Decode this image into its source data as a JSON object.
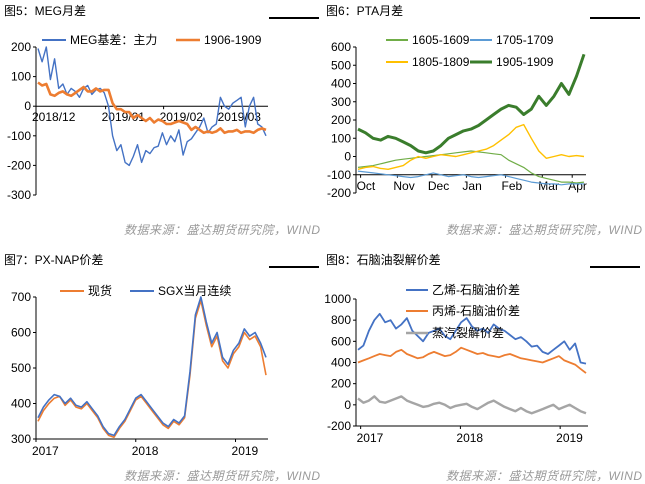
{
  "source_text": "数据来源：盛达期货研究院，WIND",
  "chart_data": [
    {
      "id": "fig5",
      "type": "line",
      "title": "图5：MEG月差",
      "ylim": [
        -300,
        200
      ],
      "yticks": [
        -300,
        -200,
        -100,
        0,
        100,
        200
      ],
      "xlabels": [
        "2018/12",
        "2019/01",
        "2019/02",
        "2019/03"
      ],
      "legend": "top-left, inside",
      "series": [
        {
          "name": "MEG基差：主力",
          "color": "#4472c4",
          "values": [
            195,
            150,
            200,
            90,
            160,
            60,
            75,
            40,
            60,
            50,
            30,
            60,
            70,
            40,
            55,
            60,
            45,
            0,
            -100,
            -150,
            -130,
            -190,
            -200,
            -170,
            -130,
            -190,
            -150,
            -160,
            -140,
            -135,
            -90,
            -130,
            -100,
            -120,
            -80,
            -165,
            -120,
            -110,
            -90,
            -70,
            -40,
            -90,
            -70,
            -60,
            30,
            0,
            -10,
            10,
            20,
            30,
            -70,
            0,
            30,
            -60,
            -70,
            -100
          ]
        },
        {
          "name": "1906-1909",
          "color": "#ed7d31",
          "values": [
            80,
            70,
            75,
            40,
            35,
            45,
            50,
            40,
            35,
            45,
            55,
            65,
            50,
            50,
            60,
            50,
            55,
            55,
            10,
            -10,
            -10,
            -20,
            -20,
            -40,
            -30,
            -40,
            -50,
            -40,
            -55,
            -45,
            -50,
            -60,
            -60,
            -55,
            -50,
            -55,
            -60,
            -80,
            -70,
            -80,
            -90,
            -85,
            -90,
            -85,
            -75,
            -90,
            -85,
            -85,
            -80,
            -90,
            -85,
            -85,
            -90,
            -80,
            -75,
            -80
          ]
        }
      ]
    },
    {
      "id": "fig6",
      "type": "line",
      "title": "图6：PTA月差",
      "ylim": [
        -200,
        600
      ],
      "yticks": [
        -200,
        -100,
        0,
        100,
        200,
        300,
        400,
        500,
        600
      ],
      "xlabels": [
        "Oct",
        "Nov",
        "Dec",
        "Jan",
        "Feb",
        "Mar",
        "Apr"
      ],
      "legend": "top, inside, 2 columns",
      "series": [
        {
          "name": "1605-1609",
          "color": "#70ad47",
          "values": [
            -60,
            -55,
            -50,
            -40,
            -30,
            -20,
            -15,
            -10,
            -5,
            0,
            5,
            10,
            15,
            20,
            25,
            30,
            25,
            20,
            15,
            10,
            -20,
            -40,
            -60,
            -90,
            -110,
            -120,
            -130,
            -140,
            -140,
            -145,
            -140
          ]
        },
        {
          "name": "1705-1709",
          "color": "#5b9bd5",
          "values": [
            -80,
            -85,
            -90,
            -95,
            -100,
            -105,
            -110,
            -115,
            -110,
            -100,
            -90,
            -100,
            -110,
            -105,
            -100,
            -110,
            -115,
            -110,
            -105,
            -100,
            -110,
            -120,
            -130,
            -140,
            -145,
            -150,
            -150,
            -155,
            -150,
            -150,
            -150
          ]
        },
        {
          "name": "1805-1809",
          "color": "#ffc000",
          "values": [
            -70,
            -60,
            -55,
            -65,
            -70,
            -60,
            -50,
            -20,
            0,
            -10,
            0,
            10,
            5,
            0,
            10,
            20,
            30,
            40,
            60,
            90,
            120,
            160,
            175,
            100,
            30,
            -10,
            0,
            10,
            0,
            5,
            0
          ]
        },
        {
          "name": "1905-1909",
          "color": "#3a7d2c",
          "values": [
            150,
            130,
            100,
            90,
            110,
            100,
            80,
            60,
            30,
            20,
            30,
            60,
            100,
            120,
            140,
            150,
            170,
            200,
            230,
            260,
            280,
            270,
            230,
            260,
            330,
            280,
            330,
            400,
            340,
            440,
            560
          ]
        }
      ]
    },
    {
      "id": "fig7",
      "type": "line",
      "title": "图7：PX-NAP价差",
      "ylim": [
        300,
        700
      ],
      "yticks": [
        300,
        400,
        500,
        600,
        700
      ],
      "xlabels": [
        "2017",
        "2018",
        "2019"
      ],
      "legend": "top, inside",
      "series": [
        {
          "name": "现货",
          "color": "#ed7d31",
          "values": [
            350,
            380,
            400,
            415,
            420,
            395,
            410,
            390,
            385,
            400,
            380,
            360,
            330,
            310,
            305,
            330,
            350,
            380,
            410,
            420,
            400,
            380,
            360,
            340,
            330,
            350,
            340,
            360,
            480,
            640,
            690,
            620,
            560,
            590,
            520,
            500,
            540,
            560,
            600,
            580,
            590,
            560,
            480
          ]
        },
        {
          "name": "SGX当月连续",
          "color": "#4472c4",
          "values": [
            360,
            390,
            410,
            425,
            420,
            400,
            415,
            395,
            390,
            405,
            385,
            365,
            335,
            315,
            310,
            335,
            355,
            385,
            415,
            425,
            405,
            385,
            365,
            345,
            335,
            355,
            345,
            365,
            490,
            650,
            700,
            630,
            570,
            600,
            530,
            510,
            550,
            570,
            610,
            590,
            600,
            570,
            530
          ]
        }
      ]
    },
    {
      "id": "fig8",
      "type": "line",
      "title": "图8：石脑油裂解价差",
      "ylim": [
        -200,
        1000
      ],
      "yticks": [
        -200,
        0,
        200,
        400,
        600,
        800,
        1000
      ],
      "xlabels": [
        "2017",
        "2018",
        "2019"
      ],
      "legend": "top-right, inside",
      "series": [
        {
          "name": "乙烯-石脑油价差",
          "color": "#4472c4",
          "values": [
            520,
            560,
            700,
            800,
            860,
            780,
            800,
            720,
            760,
            820,
            700,
            650,
            600,
            680,
            700,
            720,
            650,
            620,
            700,
            780,
            820,
            740,
            700,
            720,
            680,
            760,
            720,
            700,
            660,
            620,
            640,
            600,
            550,
            560,
            500,
            480,
            520,
            560,
            600,
            520,
            580,
            400,
            390
          ]
        },
        {
          "name": "丙烯-石脑油价差",
          "color": "#ed7d31",
          "values": [
            400,
            420,
            440,
            460,
            480,
            470,
            460,
            500,
            520,
            480,
            460,
            440,
            450,
            480,
            500,
            480,
            460,
            470,
            500,
            540,
            520,
            500,
            480,
            490,
            470,
            460,
            450,
            470,
            480,
            460,
            440,
            430,
            420,
            410,
            400,
            420,
            440,
            460,
            420,
            400,
            380,
            340,
            300
          ]
        },
        {
          "name": "蒸汽裂解价差",
          "color": "#a5a5a5",
          "values": [
            60,
            20,
            40,
            80,
            30,
            20,
            40,
            60,
            80,
            40,
            20,
            0,
            -20,
            -10,
            10,
            20,
            0,
            -30,
            -10,
            0,
            10,
            -20,
            -40,
            -10,
            20,
            40,
            10,
            -20,
            -40,
            -60,
            -30,
            -60,
            -80,
            -60,
            -40,
            -20,
            0,
            -40,
            -20,
            0,
            -30,
            -60,
            -80
          ]
        }
      ]
    }
  ]
}
